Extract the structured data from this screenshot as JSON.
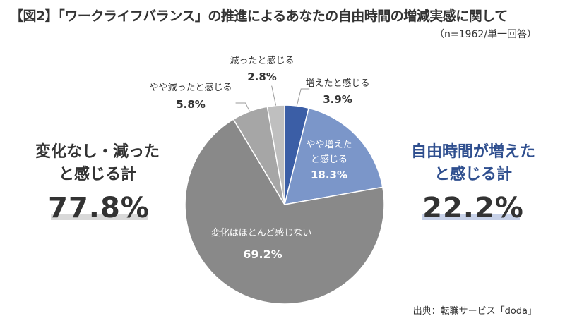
{
  "header": {
    "title": "【図2】「ワークライフバランス」の推進によるあなたの自由時間の増減実感に関して",
    "subtitle": "（n=1962/単一回答）"
  },
  "left_summary": {
    "line1": "変化なし・減った",
    "line2": "と感じる計",
    "value": "77.8%"
  },
  "right_summary": {
    "line1": "自由時間が増えた",
    "line2": "と感じる計",
    "value": "22.2%"
  },
  "source": "出典：転職サービス「doda」",
  "colors": {
    "increased": "#3b5ea6",
    "somewhat_increased": "#7b96c9",
    "no_change": "#898989",
    "somewhat_decreased": "#a6a6a6",
    "decreased": "#bfbfbf",
    "blue_text": "#2f4f8f",
    "blue_highlight": "#c7d1e8",
    "gray_highlight": "#d9d9d9"
  },
  "chart_data": {
    "type": "pie",
    "title": "「ワークライフバランス」の推進によるあなたの自由時間の増減実感に関して",
    "slices": [
      {
        "label": "増えたと感じる",
        "value": 3.9,
        "display": "3.9%"
      },
      {
        "label": "やや増えたと感じる",
        "value": 18.3,
        "display": "18.3%"
      },
      {
        "label": "変化はほとんど感じない",
        "value": 69.2,
        "display": "69.2%"
      },
      {
        "label": "やや減ったと感じる",
        "value": 5.8,
        "display": "5.8%"
      },
      {
        "label": "減ったと感じる",
        "value": 2.8,
        "display": "2.8%"
      }
    ]
  }
}
